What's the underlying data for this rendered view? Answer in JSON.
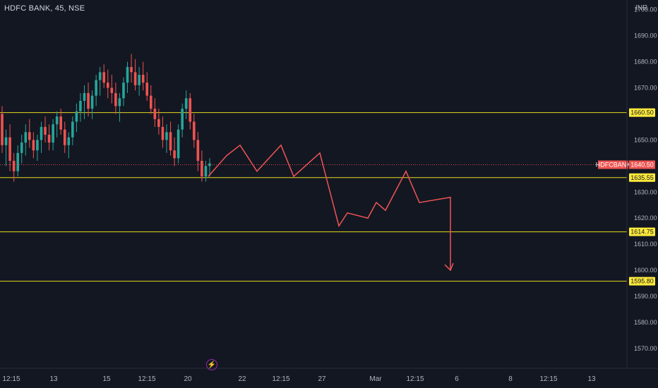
{
  "header": {
    "symbol": "HDFC BANK, 45, NSE",
    "currency": "INR"
  },
  "icons": {
    "lightning": "lightning-icon"
  },
  "colors": {
    "background": "#131722",
    "up": "#26a69a",
    "down": "#ef5350",
    "level_line": "#e5d81f",
    "badge": "#ffeb3b",
    "last_price_line": "#e0454a",
    "projection": "#f05454"
  },
  "chart_data": {
    "type": "candlestick",
    "y_axis": {
      "range": [
        1564,
        1705
      ],
      "ticks": [
        1700,
        1690,
        1680,
        1670,
        1650,
        1630,
        1620,
        1610,
        1600,
        1590,
        1580,
        1570
      ],
      "tick_labels": [
        "1700.00",
        "1690.00",
        "1680.00",
        "1670.00",
        "1650.00",
        "1630.00",
        "1620.00",
        "1610.00",
        "1600.00",
        "1590.00",
        "1580.00",
        "1570.00"
      ]
    },
    "x_axis": {
      "labels": [
        "12:15",
        "13",
        "15",
        "12:15",
        "20",
        "22",
        "12:15",
        "27",
        "Mar",
        "12:15",
        "6",
        "8",
        "12:15",
        "13"
      ]
    },
    "horizontal_levels": [
      {
        "value": 1660.5,
        "label": "1660.50"
      },
      {
        "value": 1635.55,
        "label": "1635.55"
      },
      {
        "value": 1614.75,
        "label": "1614.75"
      },
      {
        "value": 1595.8,
        "label": "1595.80"
      }
    ],
    "last_price": {
      "symbol": "HDFCBANK",
      "value": 1640.5,
      "label": "1640.50"
    },
    "candles": [
      [
        1660,
        1663,
        1645,
        1648
      ],
      [
        1648,
        1654,
        1640,
        1651
      ],
      [
        1651,
        1656,
        1638,
        1642
      ],
      [
        1642,
        1645,
        1634,
        1638
      ],
      [
        1638,
        1648,
        1636,
        1645
      ],
      [
        1645,
        1652,
        1641,
        1649
      ],
      [
        1649,
        1656,
        1644,
        1653
      ],
      [
        1653,
        1658,
        1647,
        1650
      ],
      [
        1650,
        1653,
        1643,
        1646
      ],
      [
        1646,
        1652,
        1642,
        1650
      ],
      [
        1650,
        1657,
        1645,
        1655
      ],
      [
        1655,
        1659,
        1649,
        1652
      ],
      [
        1652,
        1656,
        1646,
        1649
      ],
      [
        1649,
        1658,
        1646,
        1656
      ],
      [
        1656,
        1661,
        1651,
        1659
      ],
      [
        1659,
        1662,
        1652,
        1654
      ],
      [
        1654,
        1657,
        1645,
        1648
      ],
      [
        1648,
        1653,
        1643,
        1651
      ],
      [
        1651,
        1659,
        1648,
        1657
      ],
      [
        1657,
        1664,
        1653,
        1661
      ],
      [
        1661,
        1668,
        1657,
        1665
      ],
      [
        1665,
        1671,
        1658,
        1668
      ],
      [
        1668,
        1672,
        1659,
        1662
      ],
      [
        1662,
        1669,
        1658,
        1667
      ],
      [
        1667,
        1675,
        1663,
        1673
      ],
      [
        1673,
        1678,
        1667,
        1676
      ],
      [
        1676,
        1679,
        1670,
        1672
      ],
      [
        1672,
        1677,
        1666,
        1670
      ],
      [
        1670,
        1675,
        1664,
        1668
      ],
      [
        1668,
        1672,
        1660,
        1663
      ],
      [
        1663,
        1668,
        1657,
        1666
      ],
      [
        1666,
        1674,
        1663,
        1672
      ],
      [
        1672,
        1680,
        1668,
        1678
      ],
      [
        1678,
        1683,
        1672,
        1676
      ],
      [
        1676,
        1681,
        1669,
        1671
      ],
      [
        1671,
        1678,
        1667,
        1675
      ],
      [
        1675,
        1680,
        1669,
        1672
      ],
      [
        1672,
        1676,
        1665,
        1667
      ],
      [
        1667,
        1671,
        1660,
        1662
      ],
      [
        1662,
        1666,
        1655,
        1658
      ],
      [
        1658,
        1662,
        1652,
        1655
      ],
      [
        1655,
        1659,
        1647,
        1650
      ],
      [
        1650,
        1656,
        1645,
        1653
      ],
      [
        1653,
        1657,
        1644,
        1646
      ],
      [
        1646,
        1651,
        1640,
        1643
      ],
      [
        1643,
        1656,
        1641,
        1654
      ],
      [
        1654,
        1664,
        1651,
        1662
      ],
      [
        1662,
        1669,
        1658,
        1666
      ],
      [
        1666,
        1668,
        1654,
        1657
      ],
      [
        1657,
        1660,
        1647,
        1650
      ],
      [
        1650,
        1653,
        1638,
        1642
      ],
      [
        1642,
        1646,
        1634,
        1636
      ],
      [
        1636,
        1642,
        1634,
        1640
      ],
      [
        1640,
        1643,
        1636,
        1641
      ]
    ],
    "projection_path": [
      [
        0,
        1636
      ],
      [
        1,
        1644
      ],
      [
        2,
        1648
      ],
      [
        3,
        1638
      ],
      [
        4,
        1648
      ],
      [
        5,
        1636
      ],
      [
        6,
        1645
      ],
      [
        7,
        1617
      ],
      [
        8,
        1622
      ],
      [
        9,
        1620
      ],
      [
        10,
        1626
      ],
      [
        11,
        1623
      ],
      [
        12,
        1638
      ],
      [
        13,
        1626
      ],
      [
        14,
        1628
      ],
      [
        15,
        1600
      ]
    ]
  }
}
